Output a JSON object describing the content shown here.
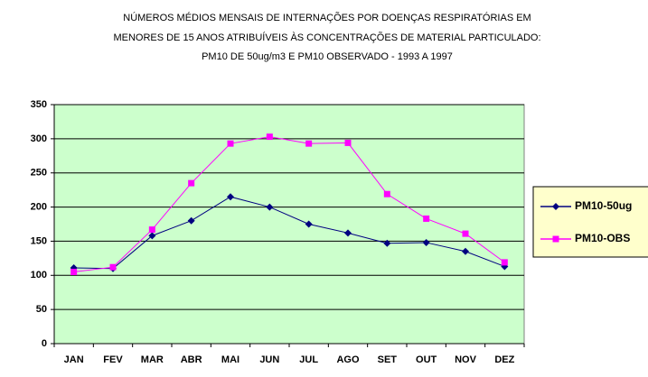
{
  "chart_data": {
    "type": "line",
    "title": [
      "NÚMEROS MÉDIOS MENSAIS DE INTERNAÇÕES POR DOENÇAS RESPIRATÓRIAS EM",
      "MENORES DE 15 ANOS ATRIBUÍVEIS ÀS CONCENTRAÇÕES DE MATERIAL PARTICULADO:",
      "PM10 DE 50ug/m3 E PM10 OBSERVADO - 1993 A 1997"
    ],
    "categories": [
      "JAN",
      "FEV",
      "MAR",
      "ABR",
      "MAI",
      "JUN",
      "JUL",
      "AGO",
      "SET",
      "OUT",
      "NOV",
      "DEZ"
    ],
    "series": [
      {
        "name": "PM10-50ug",
        "color": "#000080",
        "marker": "diamond",
        "values": [
          111,
          110,
          158,
          180,
          215,
          200,
          175,
          162,
          147,
          148,
          135,
          113
        ]
      },
      {
        "name": "PM10-OBS",
        "color": "#ff00ff",
        "marker": "square",
        "values": [
          105,
          112,
          167,
          235,
          293,
          303,
          293,
          294,
          219,
          183,
          161,
          119
        ]
      }
    ],
    "ylim": [
      0,
      350
    ],
    "yticks": [
      0,
      50,
      100,
      150,
      200,
      250,
      300,
      350
    ],
    "grid": true,
    "plot_background": "#ccffcc",
    "legend": "right"
  }
}
